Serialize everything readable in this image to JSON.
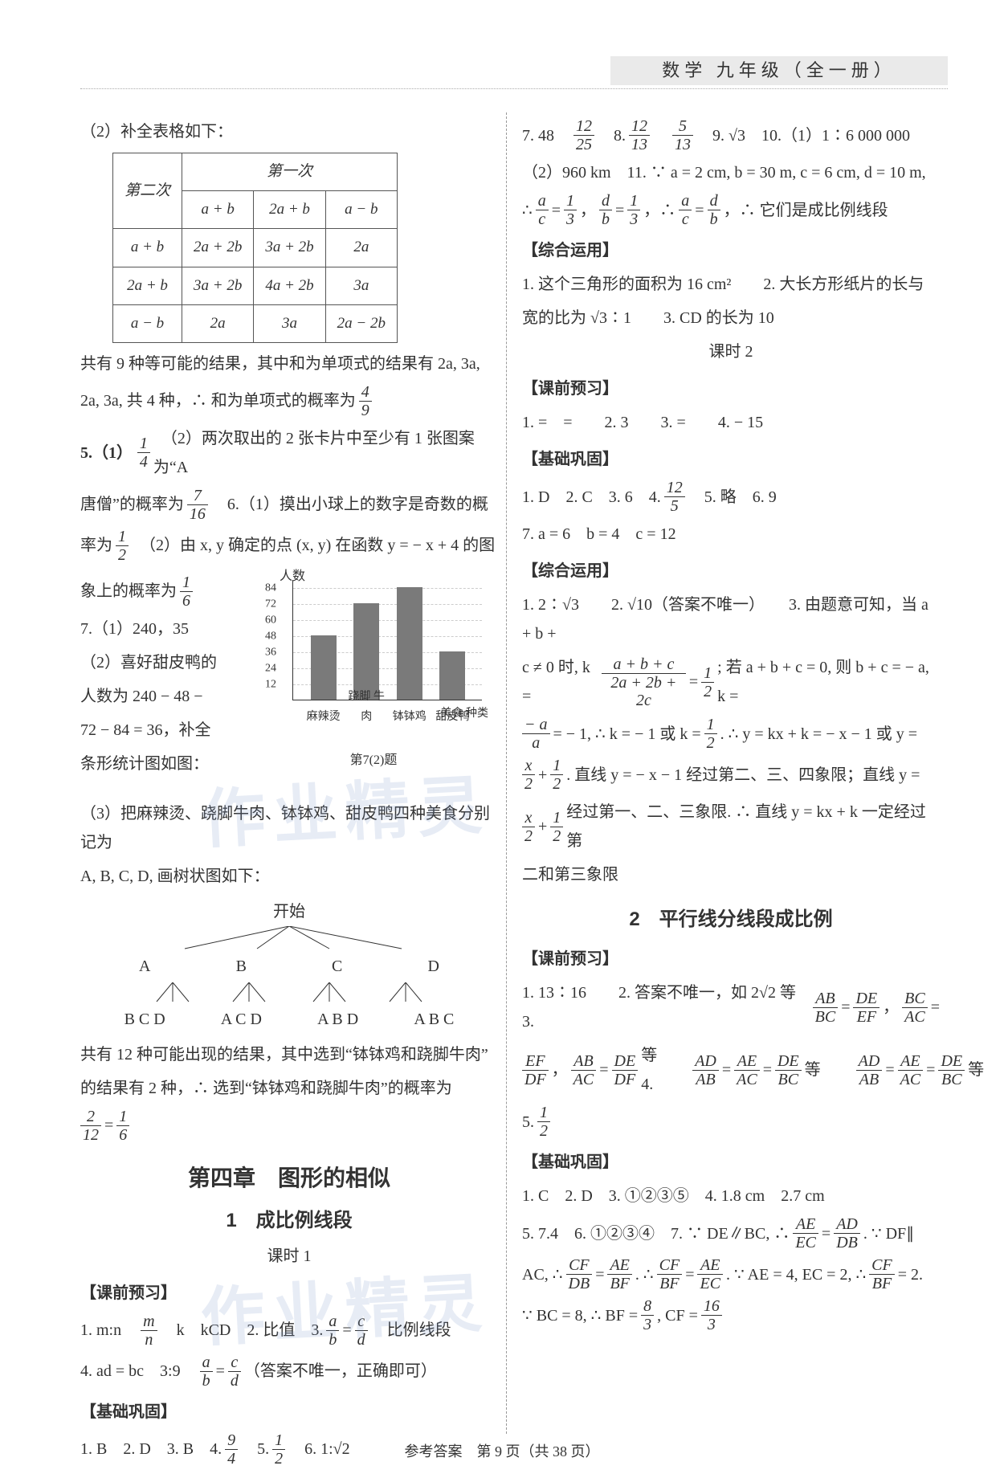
{
  "header": "数学 九年级（全一册）",
  "left": {
    "q2_intro": "（2）补全表格如下：",
    "table": {
      "row_header": "第二次",
      "col_header": "第一次",
      "cols": [
        "a + b",
        "2a + b",
        "a − b"
      ],
      "rows": [
        {
          "h": "a + b",
          "cells": [
            "2a + 2b",
            "3a + 2b",
            "2a"
          ]
        },
        {
          "h": "2a + b",
          "cells": [
            "3a + 2b",
            "4a + 2b",
            "3a"
          ]
        },
        {
          "h": "a − b",
          "cells": [
            "2a",
            "3a",
            "2a − 2b"
          ]
        }
      ]
    },
    "after_table1": "共有 9 种等可能的结果，其中和为单项式的结果有 2a, 3a,",
    "after_table2": "2a, 3a, 共 4 种，∴ 和为单项式的概率为",
    "p_49": {
      "n": "4",
      "d": "9"
    },
    "q5a": "5.（1）",
    "q5a_frac": {
      "n": "1",
      "d": "4"
    },
    "q5b": "　（2）两次取出的 2 张卡片中至少有 1 张图案为“A",
    "q5c": "唐僧”的概率为",
    "q5c_frac": {
      "n": "7",
      "d": "16"
    },
    "q6a": "　6.（1）摸出小球上的数字是奇数的概",
    "q6b": "率为",
    "q6b_frac": {
      "n": "1",
      "d": "2"
    },
    "q6c": "　（2）由 x, y 确定的点 (x, y) 在函数 y = − x + 4 的图",
    "q6d": "象上的概率为",
    "q6d_frac": {
      "n": "1",
      "d": "6"
    },
    "q7a": "7.（1）240，35",
    "q7b": "（2）喜好甜皮鸭的",
    "q7c": "人数为 240 − 48 −",
    "q7d": "72 − 84 = 36，补全",
    "q7e": "条形统计图如图：",
    "q7f": "（3）把麻辣烫、跷脚牛肉、钵钵鸡、甜皮鸭四种美食分别记为",
    "q7g": "A, B, C, D, 画树状图如下：",
    "tree_top": "开始",
    "tree_l1": [
      "A",
      "B",
      "C",
      "D"
    ],
    "tree_l2": [
      "B C D",
      "A C D",
      "A B D",
      "A B C"
    ],
    "q7h": "共有 12 种可能出现的结果，其中选到“钵钵鸡和跷脚牛肉”",
    "q7i": "的结果有 2 种，∴ 选到“钵钵鸡和跷脚牛肉”的概率为",
    "q7j_frac1": {
      "n": "2",
      "d": "12"
    },
    "eq": " = ",
    "q7j_frac2": {
      "n": "1",
      "d": "6"
    },
    "chapter": "第四章　图形的相似",
    "sub1": "1　成比例线段",
    "keshi1": "课时 1",
    "kqyx": "【课前预习】",
    "l_kq1a": "1. m:n　",
    "l_kq1b": "　k　kCD　2. 比值　3. ",
    "mn": {
      "n": "m",
      "d": "n"
    },
    "l_kq3": {
      "n": "a",
      "d": "b"
    },
    "eq2": " = ",
    "l_kq3b": {
      "n": "c",
      "d": "d"
    },
    "l_kq3t": "　比例线段",
    "l_kq4a": "4. ad = bc　3:9　",
    "l_kq4f1": {
      "n": "a",
      "d": "b"
    },
    "l_kq4f2": {
      "n": "c",
      "d": "d"
    },
    "l_kq4b": "（答案不唯一，正确即可）",
    "jcgg": "【基础巩固】",
    "l_jc": "1. B　2. D　3. B　4. ",
    "l_jc4": {
      "n": "9",
      "d": "4"
    },
    "l_jc5t": "　5. ",
    "l_jc5": {
      "n": "1",
      "d": "2"
    },
    "l_jc6": "　6. 1:√2",
    "chart": {
      "ylabel": "人数",
      "yticks": [
        12,
        24,
        36,
        48,
        60,
        72,
        84
      ],
      "bars": [
        {
          "label": "麻辣烫",
          "v": 48
        },
        {
          "label": "跷脚\n牛肉",
          "v": 72
        },
        {
          "label": "钵钵鸡",
          "v": 84
        },
        {
          "label": "甜皮鸭",
          "v": 36
        }
      ],
      "xlabel": "美食\n种类",
      "caption": "第7(2)题",
      "bar_color": "#7a7a7a",
      "ymax": 90
    }
  },
  "right": {
    "line1a": "7. 48　",
    "f1": {
      "n": "12",
      "d": "25"
    },
    "line1b": "　8. ",
    "f2": {
      "n": "12",
      "d": "13"
    },
    "sp": "　",
    "f3": {
      "n": "5",
      "d": "13"
    },
    "line1c": "　9. √3　10.（1）1∶6 000 000",
    "line2": "（2）960 km　11. ∵ a = 2 cm, b = 30 m, c = 6 cm, d = 10 m,",
    "line3a": "∴ ",
    "fa": {
      "n": "a",
      "d": "c"
    },
    "eq": " = ",
    "f13": {
      "n": "1",
      "d": "3"
    },
    "comma": "，",
    "fb": {
      "n": "d",
      "d": "b"
    },
    "line3b": "，∴ ",
    "fac": {
      "n": "a",
      "d": "c"
    },
    "fdb": {
      "n": "d",
      "d": "b"
    },
    "line3c": "，∴ 它们是成比例线段",
    "zhyy": "【综合运用】",
    "z1": "1. 这个三角形的面积为 16 cm²　　2. 大长方形纸片的长与",
    "z2": "宽的比为 √3∶1　　3. CD 的长为 10",
    "keshi2": "课时 2",
    "kqyx": "【课前预习】",
    "kq2": "1. =　=　　2. 3　　3. =　　4. − 15",
    "jcgg": "【基础巩固】",
    "jc2a": "1. D　2. C　3. 6　4. ",
    "jc2_f": {
      "n": "12",
      "d": "5"
    },
    "jc2b": "　5. 略　6. 9",
    "jc2c": "7. a = 6　b = 4　c = 12",
    "zhyy2": "【综合运用】",
    "zy1": "1. 2∶√3　　2. √10（答案不唯一）　　3. 由题意可知，当 a + b +",
    "zy2a": "c ≠ 0 时, k = ",
    "zy2f1": {
      "n": "a + b + c",
      "d": "2a + 2b + 2c"
    },
    "zy2eq": " = ",
    "zy2f2": {
      "n": "1",
      "d": "2"
    },
    "zy2b": "; 若 a + b + c = 0, 则 b + c = − a, k =",
    "zy3a": "",
    "zy3f": {
      "n": "− a",
      "d": "a"
    },
    "zy3b": " = − 1, ∴ k = − 1 或 k = ",
    "zy3f2": {
      "n": "1",
      "d": "2"
    },
    "zy3c": ". ∴ y = kx + k = − x − 1 或 y =",
    "zy4a": "",
    "zy4f": {
      "n": "x",
      "d": "2"
    },
    "zy4p": " + ",
    "zy4f2": {
      "n": "1",
      "d": "2"
    },
    "zy4b": ". 直线 y = − x − 1 经过第二、三、四象限；直线 y =",
    "zy5a": "",
    "zy5b": " 经过第一、二、三象限. ∴ 直线 y = kx + k 一定经过第",
    "zy6": "二和第三象限",
    "sub2": "2　平行线分线段成比例",
    "kqyx3": "【课前预习】",
    "k3_1": "1. 13∶16　　2. 答案不唯一，如 2√2 等　　3. ",
    "k3f1": {
      "n": "AB",
      "d": "BC"
    },
    "k3f2": {
      "n": "DE",
      "d": "EF"
    },
    "k3f3": {
      "n": "BC",
      "d": "AC"
    },
    "k3_2a": "",
    "k3f4": {
      "n": "EF",
      "d": "DF"
    },
    "k3f5": {
      "n": "AB",
      "d": "AC"
    },
    "k3f6": {
      "n": "DE",
      "d": "DF"
    },
    "k3_2b": " 等　　4. ",
    "k3f7": {
      "n": "AD",
      "d": "AB"
    },
    "k3f8": {
      "n": "AE",
      "d": "AC"
    },
    "k3f9": {
      "n": "DE",
      "d": "BC"
    },
    "k3_2c": " 等　　",
    "k3f10": {
      "n": "AD",
      "d": "AB"
    },
    "k3f11": {
      "n": "AE",
      "d": "AC"
    },
    "k3f12": {
      "n": "DE",
      "d": "BC"
    },
    "k3_2d": " 等",
    "k3_5": "5. ",
    "k3_5f": {
      "n": "1",
      "d": "2"
    },
    "jcgg3": "【基础巩固】",
    "j3_1": "1. C　2. D　3. ①②③⑤　4. 1.8 cm　2.7 cm",
    "j3_2": "5. 7.4　6. ①②③④　7. ∵ DE∥BC, ∴ ",
    "j3f1": {
      "n": "AE",
      "d": "EC"
    },
    "j3f2": {
      "n": "AD",
      "d": "DB"
    },
    "j3_2b": ". ∵ DF∥",
    "j3_3a": "AC, ∴ ",
    "j3f3": {
      "n": "CF",
      "d": "DB"
    },
    "j3f4": {
      "n": "AE",
      "d": "BF"
    },
    "j3_3m": ". ∴ ",
    "j3f5": {
      "n": "CF",
      "d": "BF"
    },
    "j3f6": {
      "n": "AE",
      "d": "EC"
    },
    "j3_3b": ". ∵ AE = 4, EC = 2, ∴ ",
    "j3f7": {
      "n": "CF",
      "d": "BF"
    },
    "j3_3c": " = 2.",
    "j3_4a": "∵ BC = 8, ∴ BF = ",
    "j3f8": {
      "n": "8",
      "d": "3"
    },
    "j3_4b": ", CF = ",
    "j3f9": {
      "n": "16",
      "d": "3"
    }
  },
  "footer": "参考答案　第 9 页（共 38 页）",
  "watermark": "作业精灵"
}
